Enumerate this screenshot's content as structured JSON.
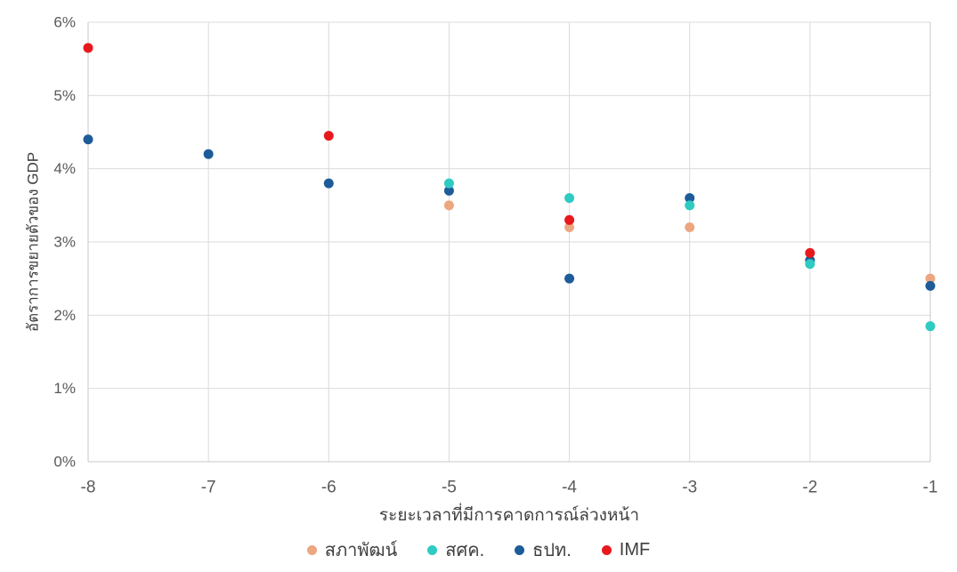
{
  "chart_data": {
    "type": "scatter",
    "title": "",
    "xlabel": "ระยะเวลาที่มีการคาดการณ์ล่วงหน้า",
    "ylabel": "อัตราการขยายตัวของ GDP",
    "xlim": [
      -8,
      -1
    ],
    "ylim": [
      0,
      6
    ],
    "x_tick_values": [
      -8,
      -7,
      -6,
      -5,
      -4,
      -3,
      -2,
      -1
    ],
    "x_tick_labels": [
      "-8",
      "-7",
      "-6",
      "-5",
      "-4",
      "-3",
      "-2",
      "-1"
    ],
    "y_tick_values": [
      0,
      1,
      2,
      3,
      4,
      5,
      6
    ],
    "y_tick_labels": [
      "0%",
      "1%",
      "2%",
      "3%",
      "4%",
      "5%",
      "6%"
    ],
    "grid": true,
    "legend_position": "bottom",
    "series": [
      {
        "name": "สภาพัฒน์",
        "color": "#ECA780",
        "points": [
          [
            -5,
            3.5
          ],
          [
            -4,
            3.2
          ],
          [
            -3,
            3.2
          ],
          [
            -1,
            2.5
          ]
        ]
      },
      {
        "name": "สศค.",
        "color": "#2FCBC2",
        "points": [
          [
            -5,
            3.8
          ],
          [
            -4,
            3.6
          ],
          [
            -3,
            3.5
          ],
          [
            -2,
            2.7
          ],
          [
            -1,
            1.85
          ]
        ]
      },
      {
        "name": "ธปท.",
        "color": "#1D5C99",
        "points": [
          [
            -8,
            4.4
          ],
          [
            -7,
            4.2
          ],
          [
            -6,
            3.8
          ],
          [
            -5,
            3.7
          ],
          [
            -4,
            2.5
          ],
          [
            -3,
            3.6
          ],
          [
            -2,
            2.75
          ],
          [
            -1,
            2.4
          ]
        ]
      },
      {
        "name": "IMF",
        "color": "#E8191D",
        "points": [
          [
            -8,
            5.65
          ],
          [
            -6,
            4.45
          ],
          [
            -4,
            3.3
          ],
          [
            -2,
            2.85
          ]
        ]
      }
    ],
    "draw_order": [
      "สภาพัฒน์",
      "ธปท.",
      "สศค.",
      "IMF"
    ],
    "style": {
      "grid_color": "#DBDBDB",
      "border_color": "#C9C9C9",
      "tick_text_color": "#595959"
    }
  }
}
